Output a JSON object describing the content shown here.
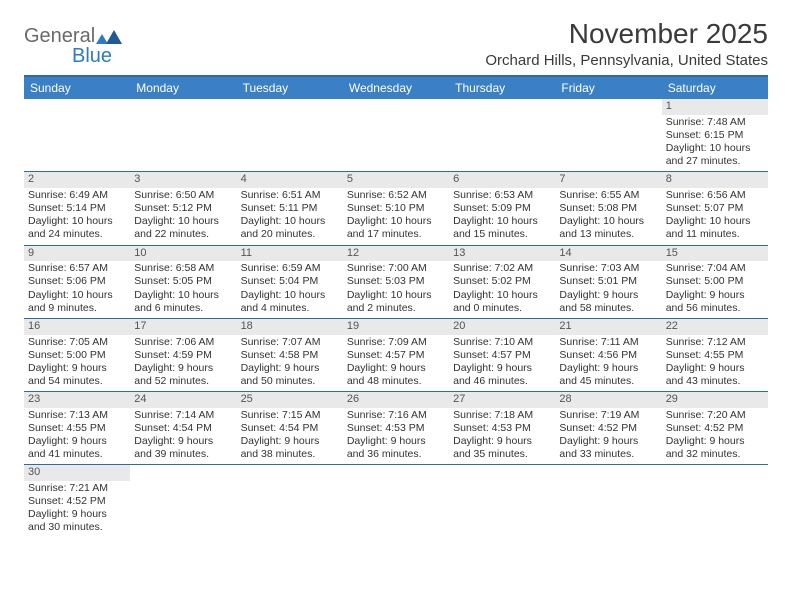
{
  "logo": {
    "text1": "General",
    "text2": "Blue"
  },
  "title": "November 2025",
  "location": "Orchard Hills, Pennsylvania, United States",
  "colors": {
    "header_bar": "#3b7fc4",
    "header_border": "#2f6aa8",
    "daynum_bg": "#e9e9e9",
    "text": "#333333",
    "logo_gray": "#6a6a6a",
    "logo_blue": "#2f7bbf"
  },
  "fonts": {
    "title_size": 28,
    "location_size": 15,
    "dow_size": 12,
    "body_size": 10.5
  },
  "day_names": [
    "Sunday",
    "Monday",
    "Tuesday",
    "Wednesday",
    "Thursday",
    "Friday",
    "Saturday"
  ],
  "weeks": [
    [
      null,
      null,
      null,
      null,
      null,
      null,
      {
        "n": "1",
        "sr": "Sunrise: 7:48 AM",
        "ss": "Sunset: 6:15 PM",
        "d1": "Daylight: 10 hours",
        "d2": "and 27 minutes."
      }
    ],
    [
      {
        "n": "2",
        "sr": "Sunrise: 6:49 AM",
        "ss": "Sunset: 5:14 PM",
        "d1": "Daylight: 10 hours",
        "d2": "and 24 minutes."
      },
      {
        "n": "3",
        "sr": "Sunrise: 6:50 AM",
        "ss": "Sunset: 5:12 PM",
        "d1": "Daylight: 10 hours",
        "d2": "and 22 minutes."
      },
      {
        "n": "4",
        "sr": "Sunrise: 6:51 AM",
        "ss": "Sunset: 5:11 PM",
        "d1": "Daylight: 10 hours",
        "d2": "and 20 minutes."
      },
      {
        "n": "5",
        "sr": "Sunrise: 6:52 AM",
        "ss": "Sunset: 5:10 PM",
        "d1": "Daylight: 10 hours",
        "d2": "and 17 minutes."
      },
      {
        "n": "6",
        "sr": "Sunrise: 6:53 AM",
        "ss": "Sunset: 5:09 PM",
        "d1": "Daylight: 10 hours",
        "d2": "and 15 minutes."
      },
      {
        "n": "7",
        "sr": "Sunrise: 6:55 AM",
        "ss": "Sunset: 5:08 PM",
        "d1": "Daylight: 10 hours",
        "d2": "and 13 minutes."
      },
      {
        "n": "8",
        "sr": "Sunrise: 6:56 AM",
        "ss": "Sunset: 5:07 PM",
        "d1": "Daylight: 10 hours",
        "d2": "and 11 minutes."
      }
    ],
    [
      {
        "n": "9",
        "sr": "Sunrise: 6:57 AM",
        "ss": "Sunset: 5:06 PM",
        "d1": "Daylight: 10 hours",
        "d2": "and 9 minutes."
      },
      {
        "n": "10",
        "sr": "Sunrise: 6:58 AM",
        "ss": "Sunset: 5:05 PM",
        "d1": "Daylight: 10 hours",
        "d2": "and 6 minutes."
      },
      {
        "n": "11",
        "sr": "Sunrise: 6:59 AM",
        "ss": "Sunset: 5:04 PM",
        "d1": "Daylight: 10 hours",
        "d2": "and 4 minutes."
      },
      {
        "n": "12",
        "sr": "Sunrise: 7:00 AM",
        "ss": "Sunset: 5:03 PM",
        "d1": "Daylight: 10 hours",
        "d2": "and 2 minutes."
      },
      {
        "n": "13",
        "sr": "Sunrise: 7:02 AM",
        "ss": "Sunset: 5:02 PM",
        "d1": "Daylight: 10 hours",
        "d2": "and 0 minutes."
      },
      {
        "n": "14",
        "sr": "Sunrise: 7:03 AM",
        "ss": "Sunset: 5:01 PM",
        "d1": "Daylight: 9 hours",
        "d2": "and 58 minutes."
      },
      {
        "n": "15",
        "sr": "Sunrise: 7:04 AM",
        "ss": "Sunset: 5:00 PM",
        "d1": "Daylight: 9 hours",
        "d2": "and 56 minutes."
      }
    ],
    [
      {
        "n": "16",
        "sr": "Sunrise: 7:05 AM",
        "ss": "Sunset: 5:00 PM",
        "d1": "Daylight: 9 hours",
        "d2": "and 54 minutes."
      },
      {
        "n": "17",
        "sr": "Sunrise: 7:06 AM",
        "ss": "Sunset: 4:59 PM",
        "d1": "Daylight: 9 hours",
        "d2": "and 52 minutes."
      },
      {
        "n": "18",
        "sr": "Sunrise: 7:07 AM",
        "ss": "Sunset: 4:58 PM",
        "d1": "Daylight: 9 hours",
        "d2": "and 50 minutes."
      },
      {
        "n": "19",
        "sr": "Sunrise: 7:09 AM",
        "ss": "Sunset: 4:57 PM",
        "d1": "Daylight: 9 hours",
        "d2": "and 48 minutes."
      },
      {
        "n": "20",
        "sr": "Sunrise: 7:10 AM",
        "ss": "Sunset: 4:57 PM",
        "d1": "Daylight: 9 hours",
        "d2": "and 46 minutes."
      },
      {
        "n": "21",
        "sr": "Sunrise: 7:11 AM",
        "ss": "Sunset: 4:56 PM",
        "d1": "Daylight: 9 hours",
        "d2": "and 45 minutes."
      },
      {
        "n": "22",
        "sr": "Sunrise: 7:12 AM",
        "ss": "Sunset: 4:55 PM",
        "d1": "Daylight: 9 hours",
        "d2": "and 43 minutes."
      }
    ],
    [
      {
        "n": "23",
        "sr": "Sunrise: 7:13 AM",
        "ss": "Sunset: 4:55 PM",
        "d1": "Daylight: 9 hours",
        "d2": "and 41 minutes."
      },
      {
        "n": "24",
        "sr": "Sunrise: 7:14 AM",
        "ss": "Sunset: 4:54 PM",
        "d1": "Daylight: 9 hours",
        "d2": "and 39 minutes."
      },
      {
        "n": "25",
        "sr": "Sunrise: 7:15 AM",
        "ss": "Sunset: 4:54 PM",
        "d1": "Daylight: 9 hours",
        "d2": "and 38 minutes."
      },
      {
        "n": "26",
        "sr": "Sunrise: 7:16 AM",
        "ss": "Sunset: 4:53 PM",
        "d1": "Daylight: 9 hours",
        "d2": "and 36 minutes."
      },
      {
        "n": "27",
        "sr": "Sunrise: 7:18 AM",
        "ss": "Sunset: 4:53 PM",
        "d1": "Daylight: 9 hours",
        "d2": "and 35 minutes."
      },
      {
        "n": "28",
        "sr": "Sunrise: 7:19 AM",
        "ss": "Sunset: 4:52 PM",
        "d1": "Daylight: 9 hours",
        "d2": "and 33 minutes."
      },
      {
        "n": "29",
        "sr": "Sunrise: 7:20 AM",
        "ss": "Sunset: 4:52 PM",
        "d1": "Daylight: 9 hours",
        "d2": "and 32 minutes."
      }
    ],
    [
      {
        "n": "30",
        "sr": "Sunrise: 7:21 AM",
        "ss": "Sunset: 4:52 PM",
        "d1": "Daylight: 9 hours",
        "d2": "and 30 minutes."
      },
      null,
      null,
      null,
      null,
      null,
      null
    ]
  ]
}
